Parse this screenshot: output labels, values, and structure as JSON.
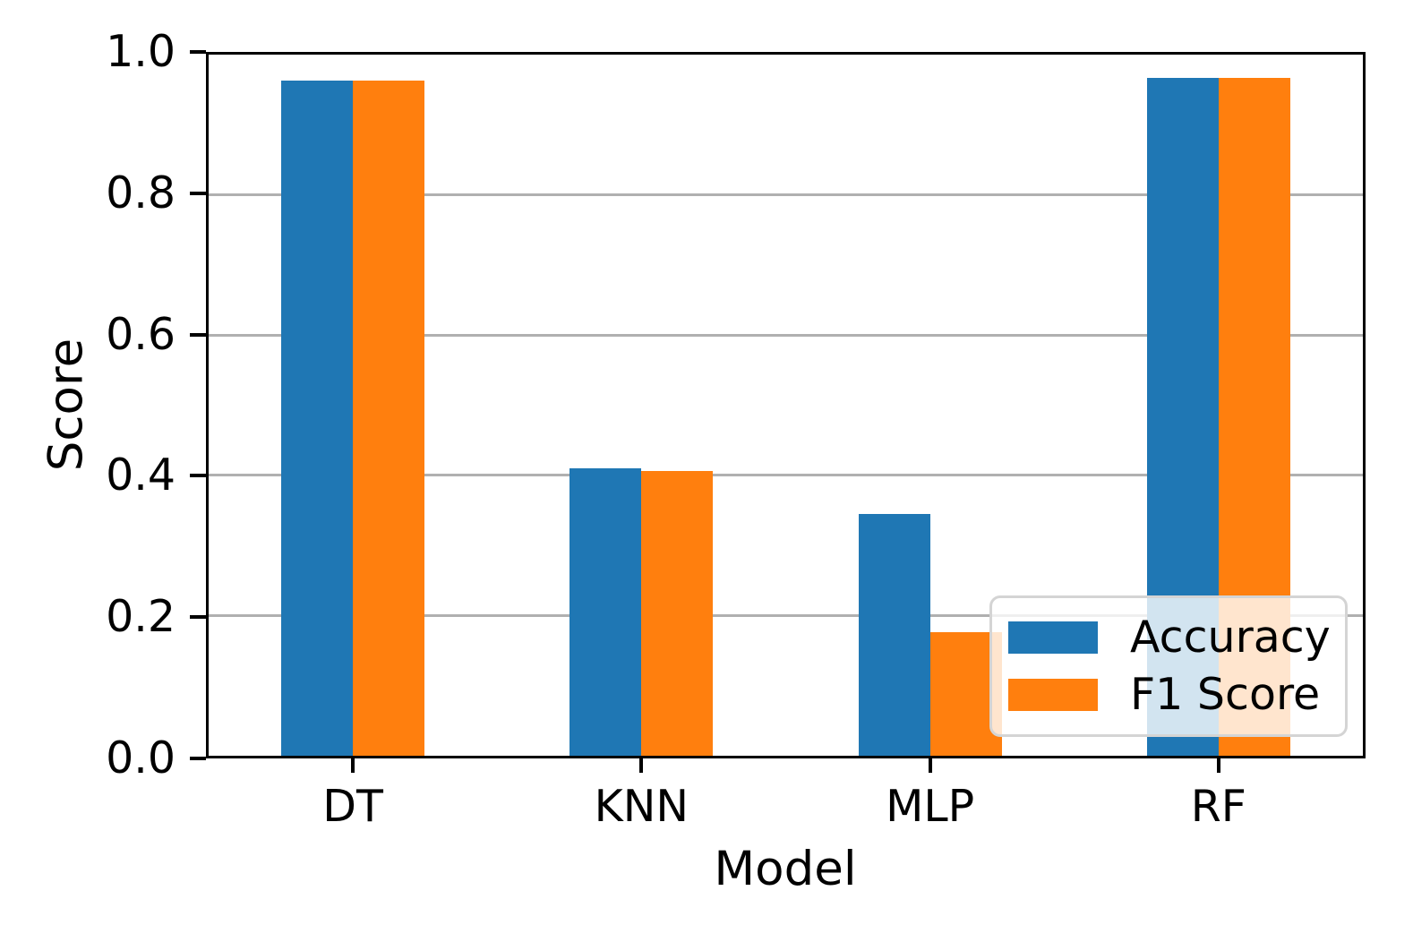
{
  "chart_data": {
    "type": "bar",
    "categories": [
      "DT",
      "KNN",
      "MLP",
      "RF"
    ],
    "series": [
      {
        "name": "Accuracy",
        "color": "#1f77b4",
        "values": [
          0.963,
          0.41,
          0.345,
          0.967
        ]
      },
      {
        "name": "F1 Score",
        "color": "#ff7f0e",
        "values": [
          0.963,
          0.406,
          0.176,
          0.967
        ]
      }
    ],
    "title": "",
    "xlabel": "Model",
    "ylabel": "Score",
    "ylim": [
      0.0,
      1.0
    ],
    "yticks": [
      0.0,
      0.2,
      0.4,
      0.6,
      0.8,
      1.0
    ],
    "grid": true,
    "legend_position": "lower right"
  },
  "colors": {
    "grid": "#b0b0b0",
    "spine": "#000000",
    "background": "#ffffff",
    "legend_frame": "#d4d4d4"
  }
}
